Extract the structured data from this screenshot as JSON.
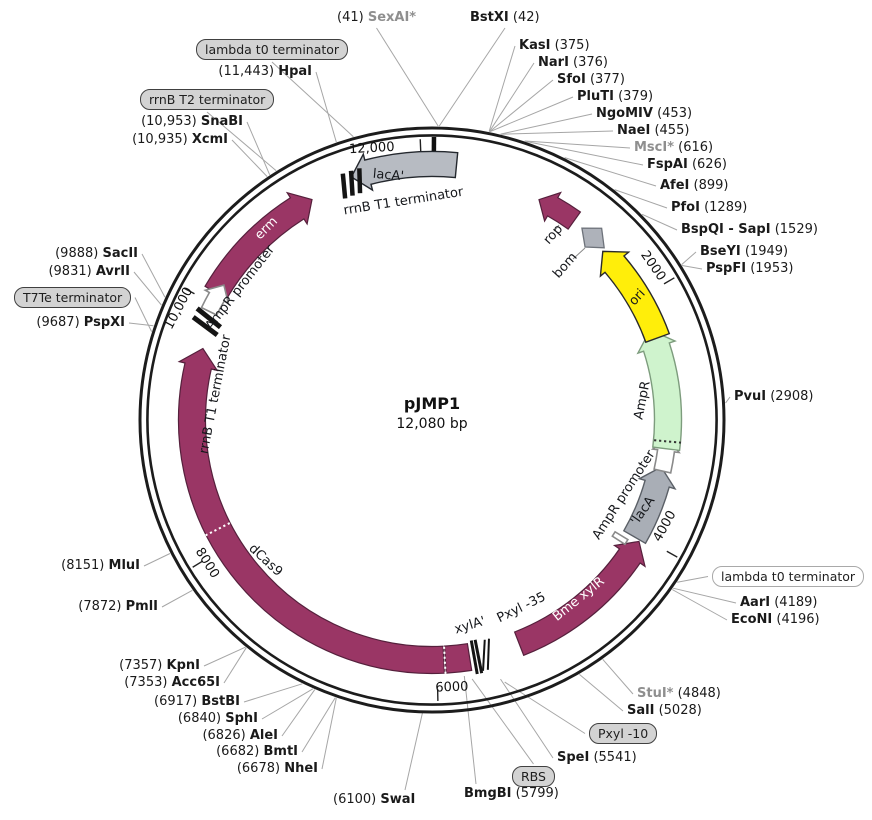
{
  "plasmid": {
    "name": "pJMP1",
    "size": "12,080 bp"
  },
  "ticks": [
    "12,000",
    "2000",
    "4000",
    "6000",
    "8000",
    "10,000"
  ],
  "features": {
    "laca_top": "lacA'",
    "rrnb_t1_top": "rrnB T1 terminator",
    "erm": "erm",
    "ampr_promoter_left": "AmpR promoter",
    "rrnb_t1_left": "rrnB T1 terminator",
    "dcas9": "dCas9",
    "xyla": "xylA'",
    "pxyl_35": "Pxyl -35",
    "bme_xylr": "Bme xylR",
    "ampr_promoter_right": "AmpR promoter",
    "laca_right": "'lacA",
    "ampr": "AmpR",
    "ori": "ori",
    "rop": "rop",
    "bom": "bom"
  },
  "pills": [
    {
      "text": "lambda t0 terminator"
    },
    {
      "text": "rrnB T2 terminator"
    },
    {
      "text": "T7Te terminator"
    },
    {
      "text": "Pxyl -10"
    },
    {
      "text": "RBS"
    },
    {
      "text": "lambda t0 terminator"
    }
  ],
  "sites": [
    {
      "pos": "(41)",
      "name": "SexAI*",
      "muted": true
    },
    {
      "name": "BstXI",
      "pos": "(42)"
    },
    {
      "name": "KasI",
      "pos": "(375)"
    },
    {
      "name": "NarI",
      "pos": "(376)"
    },
    {
      "name": "SfoI",
      "pos": "(377)"
    },
    {
      "name": "PluTI",
      "pos": "(379)"
    },
    {
      "name": "NgoMIV",
      "pos": "(453)"
    },
    {
      "name": "NaeI",
      "pos": "(455)"
    },
    {
      "name": "MscI*",
      "pos": "(616)",
      "muted": true
    },
    {
      "name": "FspAI",
      "pos": "(626)"
    },
    {
      "name": "AfeI",
      "pos": "(899)"
    },
    {
      "name": "PfoI",
      "pos": "(1289)"
    },
    {
      "name": "BspQI - SapI",
      "pos": "(1529)"
    },
    {
      "name": "BseYI",
      "pos": "(1949)"
    },
    {
      "name": "PspFI",
      "pos": "(1953)"
    },
    {
      "name": "PvuI",
      "pos": "(2908)"
    },
    {
      "name": "AarI",
      "pos": "(4189)"
    },
    {
      "name": "EcoNI",
      "pos": "(4196)"
    },
    {
      "name": "StuI*",
      "pos": "(4848)",
      "muted": true
    },
    {
      "name": "SalI",
      "pos": "(5028)"
    },
    {
      "name": "SpeI",
      "pos": "(5541)"
    },
    {
      "name": "BmgBI",
      "pos": "(5799)"
    },
    {
      "pos": "(6100)",
      "name": "SwaI"
    },
    {
      "pos": "(6678)",
      "name": "NheI"
    },
    {
      "pos": "(6682)",
      "name": "BmtI"
    },
    {
      "pos": "(6826)",
      "name": "AleI"
    },
    {
      "pos": "(6840)",
      "name": "SphI"
    },
    {
      "pos": "(6917)",
      "name": "BstBI"
    },
    {
      "pos": "(7353)",
      "name": "Acc65I"
    },
    {
      "pos": "(7357)",
      "name": "KpnI"
    },
    {
      "pos": "(7872)",
      "name": "PmlI"
    },
    {
      "pos": "(8151)",
      "name": "MluI"
    },
    {
      "pos": "(9687)",
      "name": "PspXI"
    },
    {
      "pos": "(9831)",
      "name": "AvrII"
    },
    {
      "pos": "(9888)",
      "name": "SacII"
    },
    {
      "pos": "(10,935)",
      "name": "XcmI"
    },
    {
      "pos": "(10,953)",
      "name": "SnaBI"
    },
    {
      "pos": "(11,443)",
      "name": "HpaI"
    }
  ]
}
